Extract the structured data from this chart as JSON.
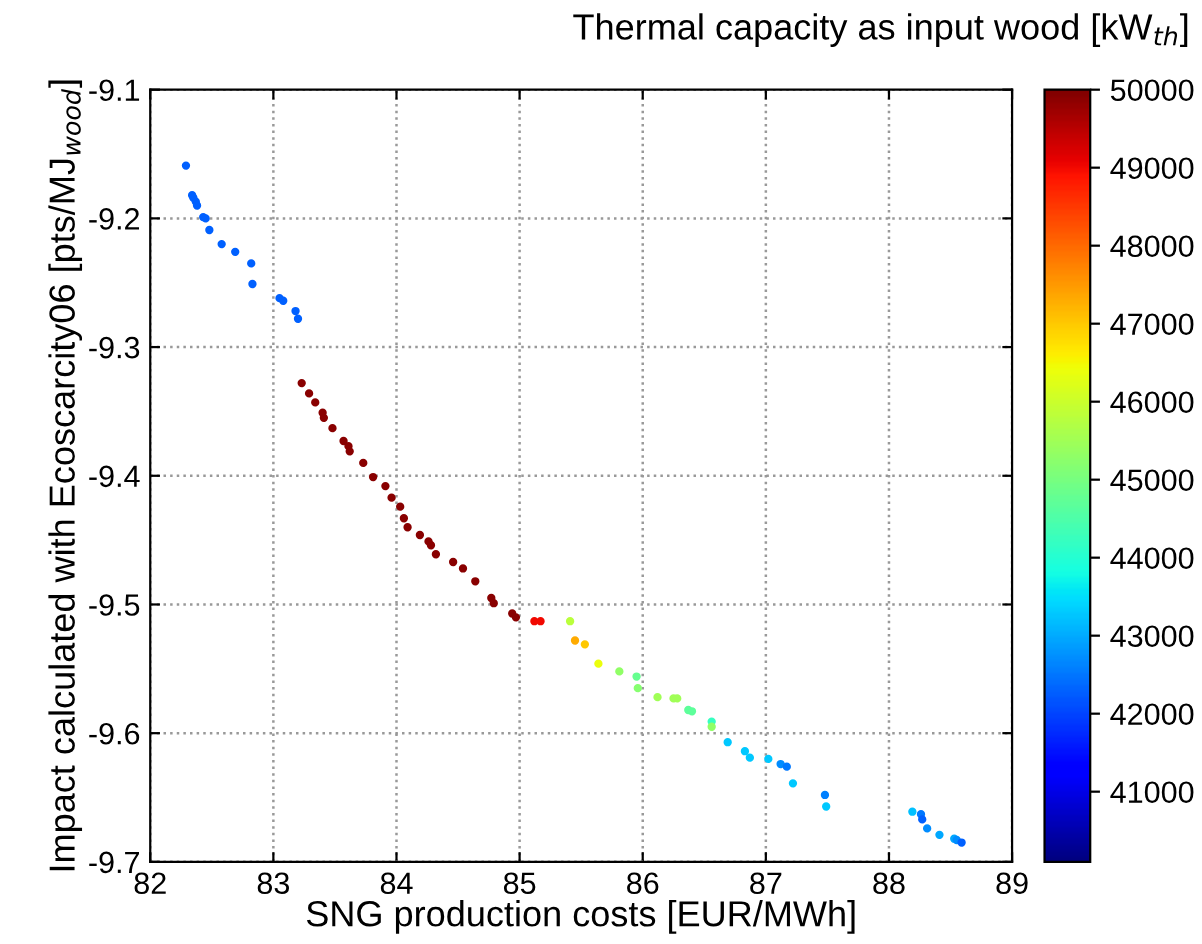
{
  "chart_data": {
    "type": "scatter",
    "xlabel": "SNG production costs [EUR/MWh]",
    "ylabel": "Impact calculated with Ecoscarcity06 [pts/MJ$_{wood}$]",
    "clabel": "Thermal capacity as input wood [kW$_{th}$]",
    "xlim": [
      82,
      89
    ],
    "xticks": [
      82,
      83,
      84,
      85,
      86,
      87,
      88,
      89
    ],
    "ylim": [
      -9.7,
      -9.1
    ],
    "yticks": [
      -9.7,
      -9.6,
      -9.5,
      -9.4,
      -9.3,
      -9.2,
      -9.1
    ],
    "clim": [
      40100,
      50000
    ],
    "cticks": [
      41000,
      42000,
      43000,
      44000,
      45000,
      46000,
      47000,
      48000,
      49000,
      50000
    ],
    "grid": true,
    "marker": "circle",
    "x": [
      82.29,
      82.34,
      82.35,
      82.37,
      82.38,
      82.43,
      82.45,
      82.48,
      82.58,
      82.69,
      82.82,
      82.83,
      83.05,
      83.08,
      83.18,
      83.2,
      83.23,
      83.29,
      83.34,
      83.4,
      83.41,
      83.48,
      83.57,
      83.61,
      83.62,
      83.73,
      83.81,
      83.91,
      83.96,
      84.03,
      84.06,
      84.09,
      84.19,
      84.26,
      84.28,
      84.32,
      84.46,
      84.54,
      84.64,
      84.77,
      84.79,
      84.94,
      84.97,
      85.12,
      85.17,
      85.41,
      85.45,
      85.53,
      85.64,
      85.81,
      85.95,
      85.96,
      86.12,
      86.25,
      86.28,
      86.37,
      86.4,
      86.56,
      86.56,
      86.69,
      86.83,
      86.87,
      87.02,
      87.12,
      87.17,
      87.22,
      87.48,
      87.49,
      88.19,
      88.26,
      88.27,
      88.31,
      88.41,
      88.53,
      88.55,
      88.59
    ],
    "values": [
      -9.159,
      -9.182,
      -9.184,
      -9.187,
      -9.19,
      -9.199,
      -9.2,
      -9.209,
      -9.22,
      -9.226,
      -9.235,
      -9.251,
      -9.262,
      -9.264,
      -9.272,
      -9.278,
      -9.328,
      -9.336,
      -9.343,
      -9.351,
      -9.355,
      -9.363,
      -9.373,
      -9.377,
      -9.381,
      -9.39,
      -9.401,
      -9.408,
      -9.417,
      -9.424,
      -9.433,
      -9.44,
      -9.446,
      -9.451,
      -9.454,
      -9.461,
      -9.467,
      -9.472,
      -9.482,
      -9.495,
      -9.499,
      -9.507,
      -9.51,
      -9.513,
      -9.513,
      -9.513,
      -9.528,
      -9.531,
      -9.546,
      -9.552,
      -9.556,
      -9.565,
      -9.572,
      -9.573,
      -9.573,
      -9.582,
      -9.583,
      -9.591,
      -9.595,
      -9.607,
      -9.614,
      -9.619,
      -9.62,
      -9.624,
      -9.626,
      -9.639,
      -9.648,
      -9.657,
      -9.661,
      -9.663,
      -9.667,
      -9.674,
      -9.679,
      -9.682,
      -9.683,
      -9.685
    ],
    "cvalues": [
      42300,
      42300,
      42300,
      42300,
      42300,
      42300,
      42300,
      42300,
      42300,
      42300,
      42300,
      42300,
      42300,
      42300,
      42300,
      42300,
      49900,
      49900,
      49900,
      49900,
      49900,
      49900,
      49900,
      49900,
      49900,
      49900,
      49900,
      49900,
      49900,
      49900,
      49900,
      49900,
      49900,
      49900,
      49900,
      49900,
      49900,
      49900,
      49900,
      49900,
      49900,
      49900,
      49900,
      49000,
      49000,
      45800,
      47300,
      47000,
      46400,
      45300,
      44800,
      45200,
      45500,
      45500,
      45500,
      44700,
      44700,
      44200,
      45300,
      43300,
      43300,
      43300,
      43300,
      42700,
      42500,
      43300,
      42600,
      43300,
      43200,
      42500,
      42300,
      42700,
      43000,
      43000,
      42700,
      42300
    ]
  }
}
